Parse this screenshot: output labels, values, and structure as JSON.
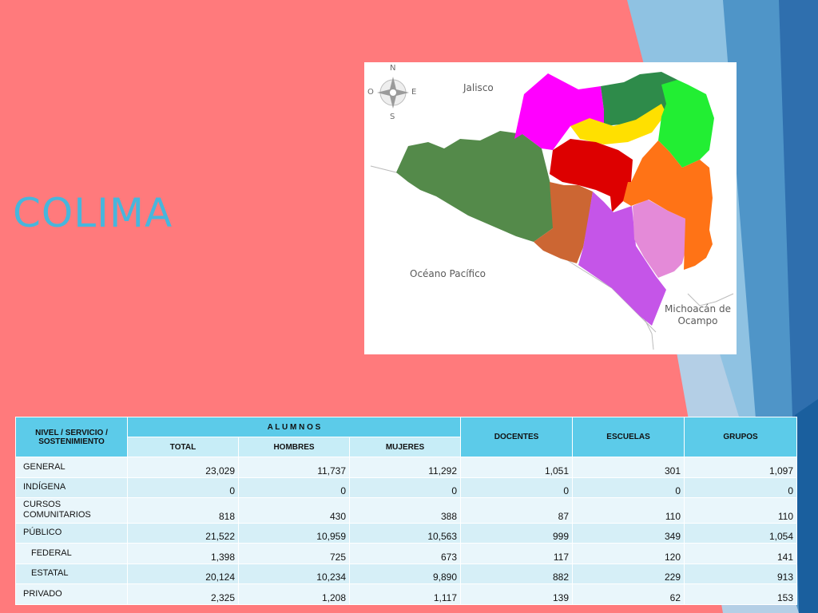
{
  "slide": {
    "title": "COLIMA",
    "colors": {
      "background": "#ff7a7c",
      "title": "#47b6dc",
      "accent_blue_dark": "#2f7fbf",
      "accent_blue_light": "#8fc2e2",
      "table_header": "#5ccbe9"
    }
  },
  "map": {
    "compass": {
      "north": "N",
      "south": "S",
      "east": "E",
      "west": "O"
    },
    "labels": {
      "jalisco": "Jalisco",
      "ocean": "Océano Pacífico",
      "michoacan_line1": "Michoacán de",
      "michoacan_line2": "Ocampo"
    },
    "region_colors": [
      "#548a4a",
      "#ff00ff",
      "#2e8b4a",
      "#ffe000",
      "#22ee33",
      "#dd0000",
      "#ff7316",
      "#cc6633",
      "#c555e8",
      "#e48ad8"
    ]
  },
  "table": {
    "headers": {
      "nivel": "NIVEL / SERVICIO / SOSTENIMIENTO",
      "alumnos": "A L U M N O S",
      "total": "TOTAL",
      "hombres": "HOMBRES",
      "mujeres": "MUJERES",
      "docentes": "DOCENTES",
      "escuelas": "ESCUELAS",
      "grupos": "GRUPOS"
    },
    "rows": [
      {
        "label": "GENERAL",
        "total": "23,029",
        "hombres": "11,737",
        "mujeres": "11,292",
        "docentes": "1,051",
        "escuelas": "301",
        "grupos": "1,097"
      },
      {
        "label": "INDÍGENA",
        "total": "0",
        "hombres": "0",
        "mujeres": "0",
        "docentes": "0",
        "escuelas": "0",
        "grupos": "0"
      },
      {
        "label_line1": "CURSOS",
        "label_line2": "COMUNITARIOS",
        "total": "818",
        "hombres": "430",
        "mujeres": "388",
        "docentes": "87",
        "escuelas": "110",
        "grupos": "110"
      },
      {
        "label": "PÚBLICO",
        "total": "21,522",
        "hombres": "10,959",
        "mujeres": "10,563",
        "docentes": "999",
        "escuelas": "349",
        "grupos": "1,054"
      },
      {
        "label": "FEDERAL",
        "total": "1,398",
        "hombres": "725",
        "mujeres": "673",
        "docentes": "117",
        "escuelas": "120",
        "grupos": "141"
      },
      {
        "label": "ESTATAL",
        "total": "20,124",
        "hombres": "10,234",
        "mujeres": "9,890",
        "docentes": "882",
        "escuelas": "229",
        "grupos": "913"
      },
      {
        "label": "PRIVADO",
        "total": "2,325",
        "hombres": "1,208",
        "mujeres": "1,117",
        "docentes": "139",
        "escuelas": "62",
        "grupos": "153"
      }
    ]
  }
}
